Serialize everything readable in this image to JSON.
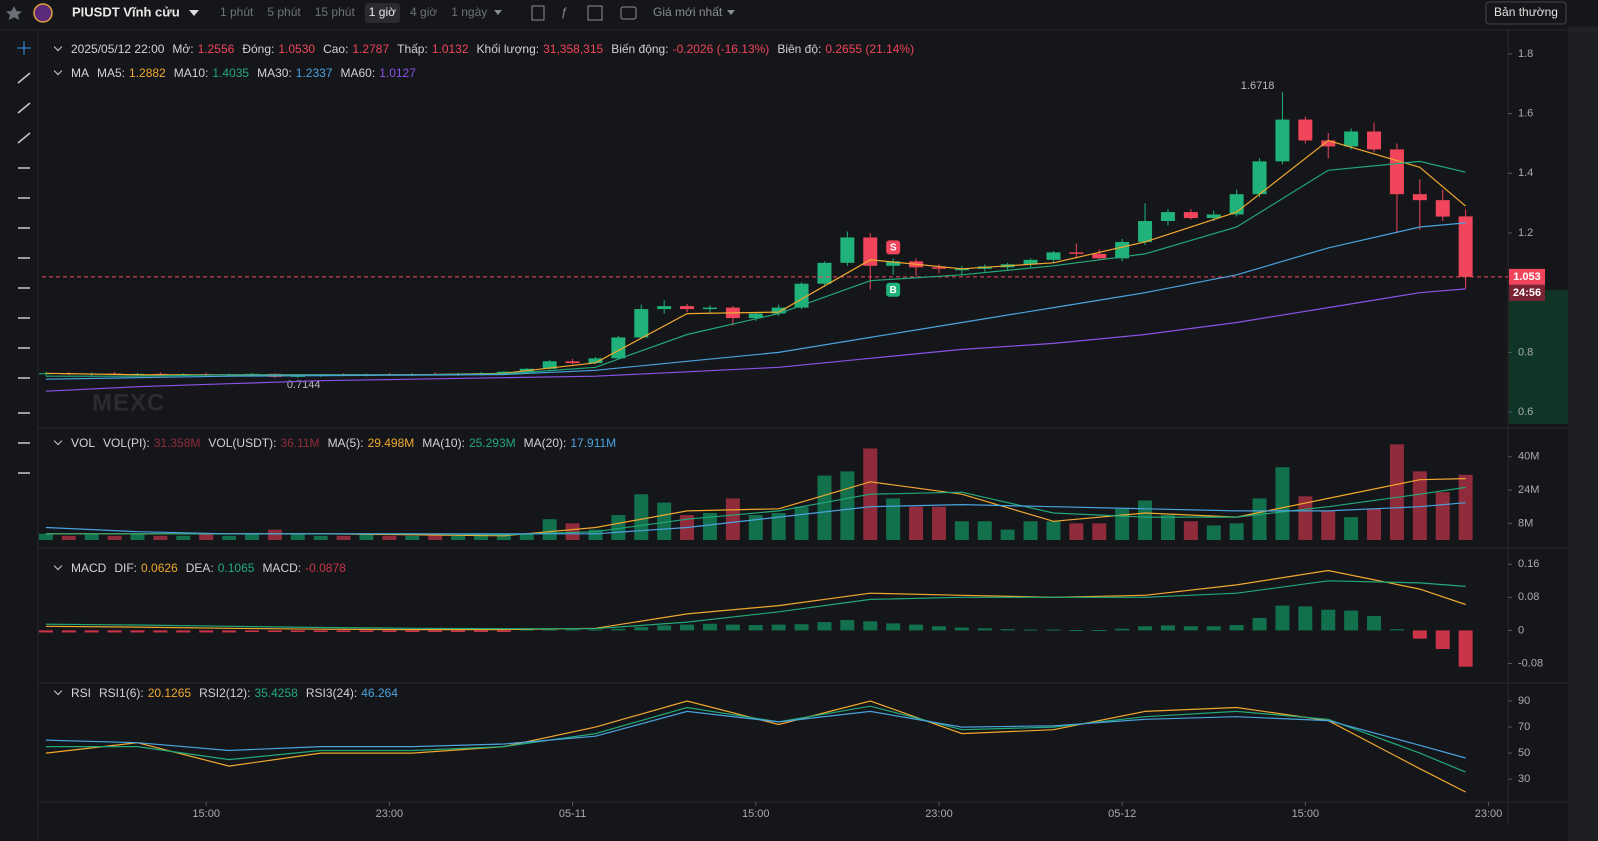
{
  "toolbar": {
    "symbol": "PIUSDT Vĩnh cửu",
    "intervals": [
      "1 phút",
      "5 phút",
      "15 phút",
      "1 giờ",
      "4 giờ",
      "1 ngày"
    ],
    "active_interval": 3,
    "price_type": "Giá mới nhất",
    "mode": "Bản thường"
  },
  "chart_data": [
    {
      "type": "candlestick",
      "watermark": "MEXC",
      "countdown": "24:56",
      "header": {
        "date": "2025/05/12 22:00",
        "items": [
          {
            "label": "Mở:",
            "value": "1.2556"
          },
          {
            "label": "Đóng:",
            "value": "1.0530"
          },
          {
            "label": "Cao:",
            "value": "1.2787"
          },
          {
            "label": "Thấp:",
            "value": "1.0132"
          },
          {
            "label": "Khối lượng:",
            "value": "31,358,315"
          },
          {
            "label": "Biến động:",
            "value": "-0.2026 (-16.13%)"
          },
          {
            "label": "Biên độ:",
            "value": "0.2655 (21.14%)"
          }
        ]
      },
      "legend_title": "MA",
      "up_color": "#1fb27a",
      "down_color": "#f0455a",
      "xlim": [
        -0.17,
        63.85
      ],
      "ylim": [
        0.56,
        1.86
      ],
      "yticks": [
        0.6,
        0.8,
        1.2,
        1.4,
        1.6,
        1.8
      ],
      "open": [
        0.728,
        0.73,
        0.727,
        0.729,
        0.726,
        0.728,
        0.725,
        0.727,
        0.724,
        0.726,
        0.728,
        0.718,
        0.722,
        0.725,
        0.723,
        0.726,
        0.724,
        0.727,
        0.725,
        0.728,
        0.73,
        0.735,
        0.745,
        0.77,
        0.764,
        0.78,
        0.85,
        0.945,
        0.955,
        0.945,
        0.95,
        0.915,
        0.93,
        0.95,
        1.03,
        1.1,
        1.185,
        1.09,
        1.105,
        1.085,
        1.075,
        1.08,
        1.085,
        1.095,
        1.11,
        1.135,
        1.13,
        1.115,
        1.17,
        1.24,
        1.27,
        1.25,
        1.262,
        1.33,
        1.44,
        1.58,
        1.51,
        1.49,
        1.54,
        1.48,
        1.33,
        1.31,
        1.2556
      ],
      "high": [
        0.735,
        0.734,
        0.732,
        0.734,
        0.731,
        0.733,
        0.73,
        0.732,
        0.729,
        0.731,
        0.73,
        0.726,
        0.728,
        0.73,
        0.729,
        0.731,
        0.73,
        0.733,
        0.731,
        0.734,
        0.738,
        0.748,
        0.775,
        0.778,
        0.785,
        0.855,
        0.96,
        0.975,
        0.962,
        0.958,
        0.955,
        0.935,
        0.96,
        1.035,
        1.105,
        1.205,
        1.2,
        1.115,
        1.115,
        1.095,
        1.09,
        1.095,
        1.1,
        1.115,
        1.14,
        1.165,
        1.145,
        1.18,
        1.3,
        1.28,
        1.28,
        1.275,
        1.345,
        1.45,
        1.6718,
        1.59,
        1.535,
        1.55,
        1.57,
        1.5,
        1.38,
        1.345,
        1.2787
      ],
      "low": [
        0.722,
        0.724,
        0.722,
        0.724,
        0.721,
        0.723,
        0.72,
        0.721,
        0.719,
        0.72,
        0.7144,
        0.715,
        0.718,
        0.72,
        0.719,
        0.721,
        0.72,
        0.722,
        0.721,
        0.723,
        0.726,
        0.731,
        0.742,
        0.76,
        0.76,
        0.776,
        0.845,
        0.93,
        0.935,
        0.932,
        0.89,
        0.905,
        0.922,
        0.945,
        1.02,
        1.09,
        1.01,
        1.06,
        1.055,
        1.065,
        1.06,
        1.07,
        1.075,
        1.085,
        1.1,
        1.115,
        1.11,
        1.105,
        1.16,
        1.225,
        1.245,
        1.24,
        1.255,
        1.32,
        1.43,
        1.5,
        1.45,
        1.48,
        1.47,
        1.2,
        1.21,
        1.24,
        1.0132
      ],
      "close": [
        0.73,
        0.727,
        0.729,
        0.726,
        0.728,
        0.725,
        0.727,
        0.724,
        0.726,
        0.728,
        0.718,
        0.722,
        0.725,
        0.723,
        0.726,
        0.724,
        0.727,
        0.725,
        0.728,
        0.73,
        0.735,
        0.745,
        0.77,
        0.764,
        0.78,
        0.85,
        0.945,
        0.955,
        0.945,
        0.95,
        0.915,
        0.93,
        0.95,
        1.03,
        1.1,
        1.185,
        1.09,
        1.105,
        1.085,
        1.08,
        1.08,
        1.088,
        1.095,
        1.11,
        1.135,
        1.13,
        1.115,
        1.17,
        1.24,
        1.27,
        1.25,
        1.262,
        1.33,
        1.44,
        1.58,
        1.51,
        1.49,
        1.54,
        1.48,
        1.33,
        1.31,
        1.255,
        1.053
      ],
      "signals": [
        {
          "label": "S",
          "at": 37,
          "side": "sell"
        },
        {
          "label": "B",
          "at": 37,
          "side": "buy"
        }
      ],
      "series": [
        {
          "name": "MA5:",
          "label": "1.2882",
          "color": "#f0a830",
          "x": [
            0,
            4,
            8,
            12,
            16,
            20,
            24,
            28,
            32,
            36,
            40,
            44,
            48,
            52,
            56,
            60,
            62
          ],
          "values": [
            0.73,
            0.725,
            0.725,
            0.725,
            0.725,
            0.73,
            0.765,
            0.93,
            0.935,
            1.11,
            1.08,
            1.1,
            1.17,
            1.27,
            1.51,
            1.42,
            1.29
          ]
        },
        {
          "name": "MA10:",
          "label": "1.4035",
          "color": "#22a87a",
          "x": [
            0,
            4,
            8,
            12,
            16,
            20,
            24,
            28,
            32,
            36,
            40,
            44,
            48,
            52,
            56,
            60,
            62
          ],
          "values": [
            0.72,
            0.72,
            0.725,
            0.725,
            0.725,
            0.728,
            0.75,
            0.86,
            0.93,
            1.04,
            1.06,
            1.09,
            1.13,
            1.22,
            1.41,
            1.44,
            1.4035
          ]
        },
        {
          "name": "MA30:",
          "label": "1.2337",
          "color": "#4aa3df",
          "x": [
            0,
            4,
            8,
            12,
            16,
            20,
            24,
            28,
            32,
            36,
            40,
            44,
            48,
            52,
            56,
            60,
            62
          ],
          "values": [
            0.71,
            0.715,
            0.72,
            0.722,
            0.724,
            0.726,
            0.74,
            0.77,
            0.8,
            0.85,
            0.9,
            0.95,
            1.0,
            1.06,
            1.15,
            1.22,
            1.2337
          ]
        },
        {
          "name": "MA60:",
          "label": "1.0127",
          "color": "#8a52e6",
          "x": [
            0,
            4,
            8,
            12,
            16,
            20,
            24,
            28,
            32,
            36,
            40,
            44,
            48,
            52,
            56,
            60,
            62
          ],
          "values": [
            0.67,
            0.685,
            0.695,
            0.705,
            0.71,
            0.715,
            0.72,
            0.735,
            0.75,
            0.78,
            0.81,
            0.83,
            0.86,
            0.9,
            0.95,
            1.0,
            1.0127
          ]
        }
      ]
    },
    {
      "type": "bar",
      "legend_title": "VOL",
      "extra": [
        {
          "label": "VOL(PI):",
          "value": "31.358M"
        },
        {
          "label": "VOL(USDT):",
          "value": "36.11M"
        }
      ],
      "up_color": "#12704d",
      "down_color": "#8f2b3b",
      "xlim": [
        -0.17,
        63.85
      ],
      "ylim": [
        0,
        50
      ],
      "yticks": [
        {
          "value": 8,
          "label": "8M"
        },
        {
          "value": 24,
          "label": "24M"
        },
        {
          "value": 40,
          "label": "40M"
        }
      ],
      "values": [
        3,
        2,
        3,
        2,
        3,
        2,
        2,
        3,
        2,
        3,
        5,
        3,
        2,
        2,
        3,
        2,
        2,
        3,
        2,
        3,
        3,
        3,
        10,
        8,
        5,
        12,
        22,
        18,
        12,
        13,
        20,
        12,
        13,
        16,
        31,
        33,
        44,
        20,
        16,
        16,
        9,
        9,
        5,
        9,
        9,
        8,
        8,
        15,
        19,
        12,
        9,
        7,
        8,
        20,
        35,
        21,
        14,
        11,
        15,
        46,
        33,
        23,
        31.358
      ],
      "series": [
        {
          "name": "MA(5):",
          "label": "29.498M",
          "color": "#f0a830",
          "x": [
            0,
            4,
            8,
            12,
            16,
            20,
            24,
            28,
            32,
            36,
            40,
            44,
            48,
            52,
            56,
            60,
            62
          ],
          "values": [
            3,
            3,
            3,
            3,
            2.5,
            2,
            6,
            14,
            15,
            28,
            22,
            9,
            13,
            11,
            20,
            29,
            29.498
          ]
        },
        {
          "name": "MA(10):",
          "label": "25.293M",
          "color": "#22a87a",
          "x": [
            0,
            4,
            8,
            12,
            16,
            20,
            24,
            28,
            32,
            36,
            40,
            44,
            48,
            52,
            56,
            60,
            62
          ],
          "values": [
            3,
            3,
            3,
            3,
            3,
            2.5,
            4,
            10,
            14,
            22,
            23,
            13,
            11,
            11,
            16,
            22,
            25.293
          ]
        },
        {
          "name": "MA(20):",
          "label": "17.911M",
          "color": "#4aa3df",
          "x": [
            0,
            4,
            8,
            12,
            16,
            20,
            24,
            28,
            32,
            36,
            40,
            44,
            48,
            52,
            56,
            60,
            62
          ],
          "values": [
            6,
            4,
            3,
            3,
            3,
            3,
            3,
            6,
            11,
            16,
            17,
            16,
            15,
            14,
            14,
            16,
            17.911
          ]
        }
      ]
    },
    {
      "type": "bar",
      "legend_title": "MACD",
      "hist_name": "MACD:",
      "hist_label": "-0.0878",
      "up_color": "#12704d",
      "down_color": "#c93449",
      "xlim": [
        -0.17,
        63.85
      ],
      "ylim": [
        -0.12,
        0.18
      ],
      "yticks": [
        -0.08,
        0,
        0.08,
        0.16
      ],
      "values": [
        -0.005,
        -0.005,
        -0.005,
        -0.005,
        -0.005,
        -0.005,
        -0.005,
        -0.005,
        -0.005,
        -0.004,
        -0.004,
        -0.004,
        -0.004,
        -0.004,
        -0.004,
        -0.004,
        -0.004,
        -0.004,
        -0.004,
        -0.004,
        -0.004,
        0.002,
        0.002,
        0.002,
        0.002,
        0.004,
        0.008,
        0.012,
        0.014,
        0.016,
        0.014,
        0.013,
        0.014,
        0.015,
        0.02,
        0.025,
        0.022,
        0.017,
        0.014,
        0.01,
        0.007,
        0.005,
        0.003,
        0.002,
        0.002,
        0.001,
        0.001,
        0.004,
        0.01,
        0.012,
        0.01,
        0.01,
        0.013,
        0.03,
        0.06,
        0.058,
        0.05,
        0.048,
        0.035,
        0.003,
        -0.02,
        -0.045,
        -0.0878
      ],
      "series": [
        {
          "name": "DIF:",
          "label": "0.0626",
          "color": "#f0a830",
          "x": [
            0,
            4,
            8,
            12,
            16,
            20,
            24,
            28,
            32,
            36,
            40,
            44,
            48,
            52,
            56,
            60,
            62
          ],
          "values": [
            0.01,
            0.008,
            0.005,
            0.003,
            0.002,
            0.002,
            0.005,
            0.04,
            0.06,
            0.09,
            0.085,
            0.08,
            0.085,
            0.11,
            0.145,
            0.1,
            0.0626
          ]
        },
        {
          "name": "DEA:",
          "label": "0.1065",
          "color": "#22a87a",
          "x": [
            0,
            4,
            8,
            12,
            16,
            20,
            24,
            28,
            32,
            36,
            40,
            44,
            48,
            52,
            56,
            60,
            62
          ],
          "values": [
            0.015,
            0.013,
            0.01,
            0.007,
            0.005,
            0.004,
            0.004,
            0.02,
            0.045,
            0.075,
            0.08,
            0.08,
            0.08,
            0.09,
            0.12,
            0.115,
            0.1065
          ]
        }
      ]
    },
    {
      "type": "line",
      "legend_title": "RSI",
      "xlim": [
        -0.17,
        63.85
      ],
      "ylim": [
        14,
        100
      ],
      "yticks": [
        30,
        50,
        70,
        90
      ],
      "xticks": [
        {
          "value": 7,
          "label": "15:00"
        },
        {
          "value": 15,
          "label": "23:00"
        },
        {
          "value": 23,
          "label": "05-11"
        },
        {
          "value": 31,
          "label": "15:00"
        },
        {
          "value": 39,
          "label": "23:00"
        },
        {
          "value": 47,
          "label": "05-12"
        },
        {
          "value": 55,
          "label": "15:00"
        },
        {
          "value": 63,
          "label": "23:00"
        }
      ],
      "series": [
        {
          "name": "RSI1(6):",
          "label": "20.1265",
          "color": "#f0a830",
          "x": [
            0,
            4,
            8,
            12,
            16,
            20,
            24,
            28,
            32,
            36,
            40,
            44,
            48,
            52,
            56,
            60,
            62
          ],
          "values": [
            50,
            58,
            40,
            50,
            50,
            55,
            70,
            90,
            72,
            90,
            65,
            68,
            82,
            85,
            75,
            38,
            20.1265
          ]
        },
        {
          "name": "RSI2(12):",
          "label": "35.4258",
          "color": "#22a87a",
          "x": [
            0,
            4,
            8,
            12,
            16,
            20,
            24,
            28,
            32,
            36,
            40,
            44,
            48,
            52,
            56,
            60,
            62
          ],
          "values": [
            55,
            55,
            45,
            52,
            52,
            55,
            65,
            85,
            74,
            86,
            68,
            70,
            78,
            82,
            76,
            50,
            35.4258
          ]
        },
        {
          "name": "RSI3(24):",
          "label": "46.264",
          "color": "#4aa3df",
          "x": [
            0,
            4,
            8,
            12,
            16,
            20,
            24,
            28,
            32,
            36,
            40,
            44,
            48,
            52,
            56,
            60,
            62
          ],
          "values": [
            60,
            58,
            52,
            55,
            55,
            57,
            63,
            82,
            74,
            82,
            70,
            71,
            76,
            78,
            75,
            56,
            46.264
          ]
        }
      ]
    }
  ]
}
